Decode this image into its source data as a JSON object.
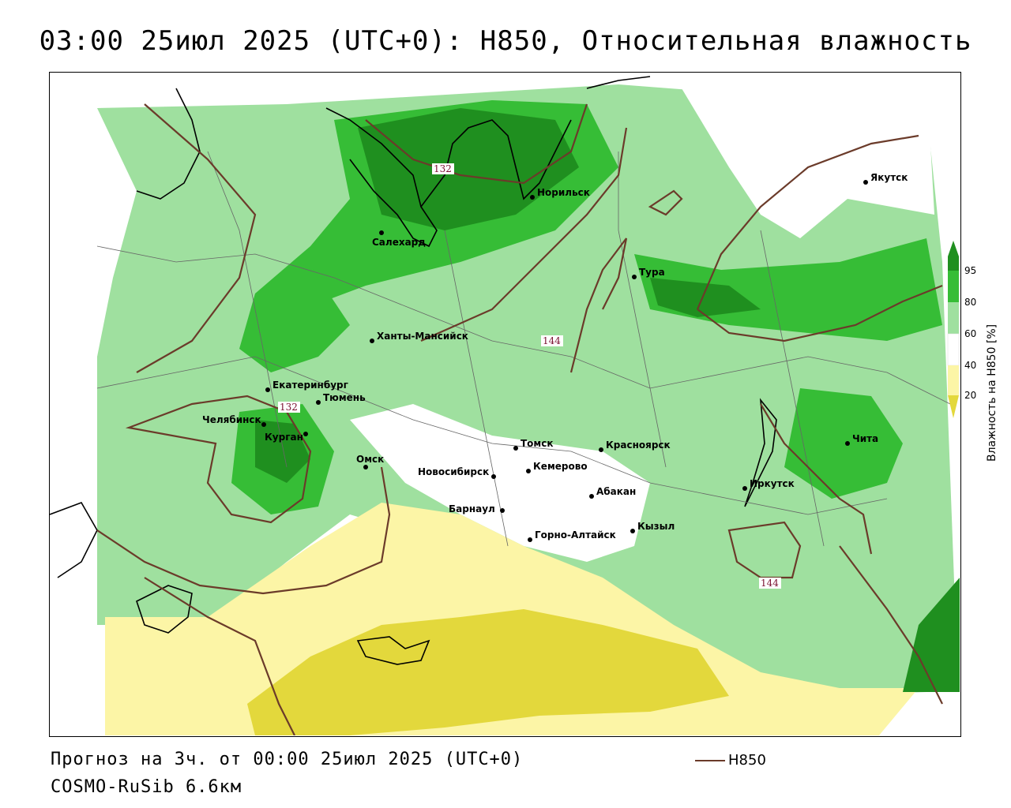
{
  "title": "03:00 25июл 2025 (UTC+0): H850, Относительная влажность",
  "footer": {
    "forecast": "Прогноз на 3ч. от 00:00 25июл 2025 (UTC+0)",
    "model": "COSMO-RuSib 6.6км"
  },
  "legend": {
    "title": "Влажность на H850 [%]",
    "ticks": [
      "95",
      "80",
      "60",
      "40",
      "20"
    ],
    "contour_label": "H850",
    "colors": {
      "above95": "#1e8a1e",
      "80_95": "#2eb82e",
      "60_80": "#8fdc8f",
      "40_60": "#ffffff",
      "20_40": "#fcf5a6",
      "below20": "#e0d83a",
      "contour": "#6b3b2a"
    }
  },
  "map": {
    "cities": [
      {
        "name": "Якутск"
      },
      {
        "name": "Норильск"
      },
      {
        "name": "Салехард"
      },
      {
        "name": "Тура"
      },
      {
        "name": "Ханты-Мансийск"
      },
      {
        "name": "Екатеринбург"
      },
      {
        "name": "Тюмень"
      },
      {
        "name": "Челябинск"
      },
      {
        "name": "Курган"
      },
      {
        "name": "Омск"
      },
      {
        "name": "Томск"
      },
      {
        "name": "Красноярск"
      },
      {
        "name": "Новосибирск"
      },
      {
        "name": "Кемерово"
      },
      {
        "name": "Абакан"
      },
      {
        "name": "Барнаул"
      },
      {
        "name": "Горно-Алтайск"
      },
      {
        "name": "Кызыл"
      },
      {
        "name": "Иркутск"
      },
      {
        "name": "Чита"
      }
    ],
    "contour_labels": [
      "132",
      "132",
      "144",
      "144"
    ]
  }
}
